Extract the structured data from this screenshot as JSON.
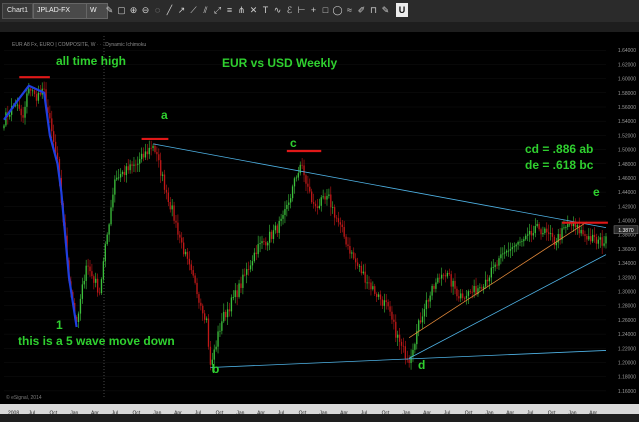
{
  "toolbar": {
    "tab_label": "Chart1",
    "symbol": "JPLAD-FX",
    "interval": "W",
    "u_label": "U"
  },
  "colors": {
    "background": "#000000",
    "up_candle": "#3cc03c",
    "down_candle": "#c01818",
    "trendline": "#4fb3e6",
    "channel_line": "#e58a3a",
    "wave_line": "#1f3fe0",
    "marker": "#e01818",
    "annotation": "#2fd02f"
  },
  "chart_data": {
    "type": "candlestick",
    "title": "EUR vs USD Weekly",
    "info_line": "EUR A8 Fx, EURO | COMPOSITE, W  ∙ ∙ ∙  Dynamic Ichimoku",
    "y_range": [
      1.15,
      1.66
    ],
    "y_ticks": [
      "1.64000",
      "1.62000",
      "1.60000",
      "1.58000",
      "1.56000",
      "1.54000",
      "1.52000",
      "1.50000",
      "1.48000",
      "1.46000",
      "1.44000",
      "1.42000",
      "1.40000",
      "1.38000",
      "1.36000",
      "1.34000",
      "1.32000",
      "1.30000",
      "1.28000",
      "1.26000",
      "1.24000",
      "1.22000",
      "1.20000",
      "1.18000",
      "1.16000"
    ],
    "last_price": "1.3870",
    "x_labels": [
      "2008",
      "Jul",
      "Oct",
      "Jan",
      "Apr",
      "Jul",
      "Oct",
      "Jan",
      "Apr",
      "Jul",
      "Oct",
      "Jan",
      "Apr",
      "Jul",
      "Oct",
      "Jan",
      "Apr",
      "Jul",
      "Oct",
      "Jan",
      "Apr",
      "Jul",
      "Oct",
      "Jan",
      "Apr",
      "Jul",
      "Oct",
      "Jan",
      "Apr"
    ],
    "x_start_week": 0,
    "weeks": 316,
    "keypoints": [
      [
        0,
        1.542
      ],
      [
        6,
        1.565
      ],
      [
        10,
        1.542
      ],
      [
        13,
        1.59
      ],
      [
        16,
        1.575
      ],
      [
        21,
        1.58
      ],
      [
        28,
        1.48
      ],
      [
        34,
        1.32
      ],
      [
        38,
        1.25
      ],
      [
        43,
        1.34
      ],
      [
        50,
        1.3
      ],
      [
        58,
        1.46
      ],
      [
        70,
        1.48
      ],
      [
        78,
        1.508
      ],
      [
        84,
        1.45
      ],
      [
        96,
        1.34
      ],
      [
        106,
        1.26
      ],
      [
        108,
        1.193
      ],
      [
        114,
        1.26
      ],
      [
        124,
        1.31
      ],
      [
        132,
        1.36
      ],
      [
        140,
        1.38
      ],
      [
        146,
        1.4
      ],
      [
        155,
        1.48
      ],
      [
        162,
        1.42
      ],
      [
        170,
        1.43
      ],
      [
        176,
        1.39
      ],
      [
        184,
        1.34
      ],
      [
        194,
        1.3
      ],
      [
        200,
        1.28
      ],
      [
        208,
        1.22
      ],
      [
        212,
        1.206
      ],
      [
        220,
        1.28
      ],
      [
        230,
        1.33
      ],
      [
        238,
        1.295
      ],
      [
        246,
        1.3
      ],
      [
        256,
        1.33
      ],
      [
        264,
        1.36
      ],
      [
        272,
        1.37
      ],
      [
        280,
        1.39
      ],
      [
        288,
        1.37
      ],
      [
        296,
        1.395
      ],
      [
        304,
        1.38
      ],
      [
        310,
        1.37
      ],
      [
        315,
        1.371
      ]
    ],
    "trendlines": [
      {
        "name": "upper-triangle-line",
        "from": [
          78,
          1.508
        ],
        "to": [
          315,
          1.39
        ]
      },
      {
        "name": "lower-triangle-line",
        "from": [
          108,
          1.193
        ],
        "to": [
          315,
          1.217
        ]
      },
      {
        "name": "lower-channel-line",
        "from": [
          212,
          1.206
        ],
        "to": [
          315,
          1.352
        ]
      },
      {
        "name": "upper-channel-line",
        "from": [
          212,
          1.235
        ],
        "to": [
          305,
          1.398
        ]
      }
    ],
    "wave_path": [
      [
        0,
        1.542
      ],
      [
        6,
        1.565
      ],
      [
        13,
        1.59
      ],
      [
        21,
        1.58
      ],
      [
        24,
        1.52
      ],
      [
        28,
        1.48
      ],
      [
        30,
        1.44
      ],
      [
        34,
        1.32
      ],
      [
        38,
        1.25
      ]
    ],
    "markers": [
      {
        "name": "all-time-high-marker",
        "x0": 8,
        "x1": 24,
        "y": 1.602
      },
      {
        "name": "a-marker",
        "x0": 72,
        "x1": 86,
        "y": 1.515
      },
      {
        "name": "c-marker",
        "x0": 148,
        "x1": 166,
        "y": 1.498
      },
      {
        "name": "e-marker",
        "x0": 292,
        "x1": 316,
        "y": 1.397
      }
    ],
    "annotations": {
      "all_time_high": "all time high",
      "title": "EUR vs USD Weekly",
      "a": "a",
      "b": "b",
      "c": "c",
      "d": "d",
      "e": "e",
      "one": "1",
      "wave_note": "this is a 5 wave move down",
      "cd_ratio": "cd = .886 ab",
      "de_ratio": "de = .618 bc"
    },
    "copyright": "© eSignal, 2014"
  }
}
